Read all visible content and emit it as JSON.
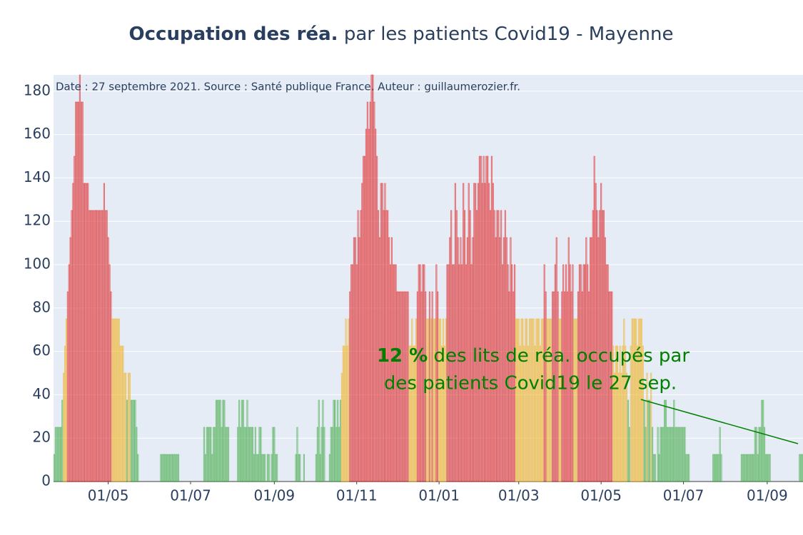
{
  "chart_data": {
    "type": "bar",
    "title_bold": "Occupation des réa.",
    "title": "par les patients Covid19 - Mayenne",
    "source": "Date : 27 septembre 2021. Source : Santé publique France. Auteur : guillaumerozier.fr.",
    "annotation": {
      "highlight": "12  %",
      "lines": [
        "des lits de réa. occupés par",
        "des patients Covid19 le 27 sep."
      ],
      "color": "#008000"
    },
    "ylim": [
      0,
      187.5
    ],
    "yticks": [
      0,
      20,
      40,
      60,
      80,
      100,
      120,
      140,
      160,
      180
    ],
    "grid": true,
    "colors": [
      "#4caf50",
      "#f0b429",
      "#e03131"
    ],
    "thresholds": [
      40,
      80
    ],
    "categories": [
      null,
      null,
      null,
      null,
      null,
      null,
      null,
      null,
      null,
      null,
      null,
      null,
      null,
      null,
      null,
      null,
      null,
      null,
      null,
      null,
      null,
      null,
      null,
      null,
      null,
      null,
      null,
      null,
      null,
      null,
      null,
      null,
      null,
      null,
      null,
      null,
      null,
      null,
      null,
      null,
      "01/05",
      null,
      null,
      null,
      null,
      null,
      null,
      null,
      null,
      null,
      null,
      null,
      null,
      null,
      null,
      null,
      null,
      null,
      null,
      null,
      null,
      null,
      null,
      null,
      null,
      null,
      null,
      null,
      null,
      null,
      null,
      null,
      null,
      null,
      null,
      null,
      null,
      null,
      null,
      null,
      null,
      null,
      null,
      null,
      null,
      null,
      null,
      null,
      null,
      null,
      null,
      null,
      null,
      null,
      null,
      null,
      null,
      null,
      null,
      null,
      null,
      "01/07",
      null,
      null,
      null,
      null,
      null,
      null,
      null,
      null,
      null,
      null,
      null,
      null,
      null,
      null,
      null,
      null,
      null,
      null,
      null,
      null,
      null,
      null,
      null,
      null,
      null,
      null,
      null,
      null,
      null,
      null,
      null,
      null,
      null,
      null,
      null,
      null,
      null,
      null,
      null,
      null,
      null,
      null,
      null,
      null,
      null,
      null,
      null,
      null,
      null,
      null,
      null,
      null,
      null,
      null,
      null,
      null,
      null,
      null,
      null,
      null,
      null,
      "01/09",
      null,
      null,
      null,
      null,
      null,
      null,
      null,
      null,
      null,
      null,
      null,
      null,
      null,
      null,
      null,
      null,
      null,
      null,
      null,
      null,
      null,
      null,
      null,
      null,
      null,
      null,
      null,
      null,
      null,
      null,
      null,
      null,
      null,
      null,
      null,
      null,
      null,
      null,
      null,
      null,
      null,
      null,
      null,
      null,
      null,
      null,
      null,
      null,
      null,
      null,
      null,
      null,
      null,
      null,
      null,
      null,
      null,
      null,
      null,
      null,
      "01/11",
      null,
      null,
      null,
      null,
      null,
      null,
      null,
      null,
      null,
      null,
      null,
      null,
      null,
      null,
      null,
      null,
      null,
      null,
      null,
      null,
      null,
      null,
      null,
      null,
      null,
      null,
      null,
      null,
      null,
      null,
      null,
      null,
      null,
      null,
      null,
      null,
      null,
      null,
      null,
      null,
      null,
      null,
      null,
      null,
      null,
      null,
      null,
      null,
      null,
      null,
      null,
      null,
      null,
      null,
      null,
      null,
      null,
      null,
      null,
      null,
      "01/01",
      null,
      null,
      null,
      null,
      null,
      null,
      null,
      null,
      null,
      null,
      null,
      null,
      null,
      null,
      null,
      null,
      null,
      null,
      null,
      null,
      null,
      null,
      null,
      null,
      null,
      null,
      null,
      null,
      null,
      null,
      null,
      null,
      null,
      null,
      null,
      null,
      null,
      null,
      null,
      null,
      null,
      null,
      null,
      null,
      null,
      null,
      null,
      null,
      null,
      null,
      null,
      null,
      null,
      null,
      null,
      null,
      null,
      null,
      "01/03",
      null,
      null,
      null,
      null,
      null,
      null,
      null,
      null,
      null,
      null,
      null,
      null,
      null,
      null,
      null,
      null,
      null,
      null,
      null,
      null,
      null,
      null,
      null,
      null,
      null,
      null,
      null,
      null,
      null,
      null,
      null,
      null,
      null,
      null,
      null,
      null,
      null,
      null,
      null,
      null,
      null,
      null,
      null,
      null,
      null,
      null,
      null,
      null,
      null,
      null,
      null,
      null,
      null,
      null,
      null,
      null,
      null,
      null,
      null,
      null,
      "01/05",
      null,
      null,
      null,
      null,
      null,
      null,
      null,
      null,
      null,
      null,
      null,
      null,
      null,
      null,
      null,
      null,
      null,
      null,
      null,
      null,
      null,
      null,
      null,
      null,
      null,
      null,
      null,
      null,
      null,
      null,
      null,
      null,
      null,
      null,
      null,
      null,
      null,
      null,
      null,
      null,
      null,
      null,
      null,
      null,
      null,
      null,
      null,
      null,
      null,
      null,
      null,
      null,
      null,
      null,
      null,
      null,
      null,
      null,
      null,
      null,
      "01/07",
      null,
      null,
      null,
      null,
      null,
      null,
      null,
      null,
      null,
      null,
      null,
      null,
      null,
      null,
      null,
      null,
      null,
      null,
      null,
      null,
      null,
      null,
      null,
      null,
      null,
      null,
      null,
      null,
      null,
      null,
      null,
      null,
      null,
      null,
      null,
      null,
      null,
      null,
      null,
      null,
      null,
      null,
      null,
      null,
      null,
      null,
      null,
      null,
      null,
      null,
      null,
      null,
      null,
      null,
      null,
      null,
      null,
      null,
      null,
      null,
      null,
      "01/09",
      null,
      null,
      null,
      null,
      null,
      null,
      null,
      null,
      null,
      null,
      null,
      null,
      null,
      null,
      null,
      null,
      null,
      null,
      null,
      null,
      null,
      null,
      null,
      null,
      null,
      null
    ],
    "values": [
      12.5,
      25,
      25,
      25,
      25,
      25,
      37.5,
      50,
      62.5,
      75,
      87.5,
      100,
      112.5,
      125,
      137.5,
      150,
      175,
      175,
      175,
      187.5,
      175,
      175,
      137.5,
      137.5,
      137.5,
      137.5,
      125,
      125,
      125,
      125,
      125,
      125,
      125,
      125,
      125,
      125,
      125,
      137.5,
      125,
      125,
      112.5,
      100,
      87.5,
      75,
      75,
      75,
      75,
      75,
      75,
      62.5,
      62.5,
      62.5,
      50,
      50,
      37.5,
      50,
      50,
      37.5,
      37.5,
      37.5,
      37.5,
      25,
      12.5,
      0,
      0,
      0,
      0,
      0,
      0,
      0,
      0,
      0,
      0,
      0,
      0,
      0,
      0,
      0,
      0,
      12.5,
      12.5,
      12.5,
      12.5,
      12.5,
      12.5,
      12.5,
      12.5,
      12.5,
      12.5,
      12.5,
      12.5,
      12.5,
      12.5,
      0,
      0,
      0,
      0,
      0,
      0,
      0,
      0,
      0,
      0,
      0,
      0,
      0,
      0,
      0,
      0,
      0,
      0,
      25,
      12.5,
      25,
      25,
      25,
      25,
      12.5,
      25,
      25,
      37.5,
      37.5,
      37.5,
      37.5,
      25,
      37.5,
      37.5,
      25,
      25,
      25,
      0,
      0,
      0,
      0,
      0,
      0,
      25,
      37.5,
      25,
      37.5,
      37.5,
      25,
      25,
      37.5,
      25,
      25,
      25,
      25,
      12.5,
      25,
      12.5,
      12.5,
      25,
      25,
      12.5,
      12.5,
      12.5,
      0,
      12.5,
      12.5,
      0,
      12.5,
      25,
      25,
      12.5,
      12.5,
      0,
      0,
      0,
      0,
      0,
      0,
      0,
      0,
      0,
      0,
      0,
      0,
      0,
      12.5,
      25,
      12.5,
      12.5,
      0,
      0,
      12.5,
      0,
      0,
      0,
      0,
      0,
      0,
      0,
      0,
      12.5,
      25,
      37.5,
      12.5,
      25,
      37.5,
      25,
      0,
      0,
      0,
      12.5,
      25,
      25,
      37.5,
      37.5,
      25,
      37.5,
      25,
      37.5,
      50,
      62.5,
      62.5,
      75,
      62.5,
      75,
      87.5,
      100,
      100,
      112.5,
      112.5,
      100,
      125,
      112.5,
      125,
      137.5,
      150,
      150,
      162.5,
      175,
      162.5,
      175,
      187.5,
      187.5,
      175,
      162.5,
      150,
      125,
      112.5,
      137.5,
      137.5,
      125,
      137.5,
      125,
      125,
      112.5,
      100,
      112.5,
      100,
      100,
      100,
      87.5,
      87.5,
      87.5,
      87.5,
      87.5,
      87.5,
      87.5,
      87.5,
      87.5,
      62.5,
      62.5,
      75,
      62.5,
      62.5,
      75,
      87.5,
      100,
      100,
      87.5,
      100,
      100,
      87.5,
      75,
      75,
      87.5,
      75,
      87.5,
      75,
      75,
      100,
      87.5,
      75,
      75,
      62.5,
      75,
      62.5,
      75,
      100,
      100,
      112.5,
      125,
      100,
      100,
      137.5,
      125,
      112.5,
      100,
      112.5,
      100,
      137.5,
      125,
      100,
      112.5,
      137.5,
      125,
      100,
      112.5,
      137.5,
      137.5,
      125,
      137.5,
      150,
      150,
      137.5,
      150,
      137.5,
      150,
      150,
      137.5,
      125,
      150,
      137.5,
      125,
      112.5,
      125,
      125,
      112.5,
      125,
      100,
      112.5,
      125,
      112.5,
      100,
      87.5,
      112.5,
      100,
      87.5,
      100,
      75,
      75,
      75,
      62.5,
      75,
      75,
      62.5,
      75,
      75,
      62.5,
      75,
      75,
      75,
      75,
      62.5,
      75,
      75,
      75,
      62.5,
      75,
      75,
      100,
      87.5,
      75,
      75,
      75,
      75,
      87.5,
      87.5,
      100,
      112.5,
      87.5,
      75,
      75,
      87.5,
      100,
      87.5,
      100,
      87.5,
      112.5,
      100,
      87.5,
      100,
      75,
      75,
      75,
      87.5,
      100,
      100,
      87.5,
      100,
      100,
      112.5,
      100,
      87.5,
      112.5,
      112.5,
      125,
      150,
      137.5,
      125,
      112.5,
      125,
      137.5,
      125,
      125,
      112.5,
      100,
      100,
      87.5,
      87.5,
      87.5,
      62.5,
      50,
      62.5,
      62.5,
      50,
      62.5,
      50,
      62.5,
      75,
      62.5,
      50,
      37.5,
      25,
      62.5,
      75,
      75,
      75,
      75,
      62.5,
      75,
      75,
      75,
      62.5,
      37.5,
      25,
      50,
      37.5,
      37.5,
      50,
      25,
      12.5,
      12.5,
      0,
      25,
      12.5,
      25,
      25,
      25,
      37.5,
      37.5,
      25,
      25,
      25,
      25,
      25,
      37.5,
      25,
      25,
      25,
      25,
      25,
      25,
      25,
      25,
      12.5,
      12.5,
      12.5,
      0,
      0,
      0,
      0,
      0,
      0,
      0,
      0,
      0,
      0,
      0,
      0,
      0,
      0,
      0,
      0,
      0,
      12.5,
      12.5,
      12.5,
      12.5,
      12.5,
      25,
      12.5,
      0,
      0,
      0,
      0,
      0,
      0,
      0,
      0,
      0,
      0,
      0,
      0,
      0,
      0,
      12.5,
      12.5,
      12.5,
      12.5,
      12.5,
      12.5,
      12.5,
      12.5,
      12.5,
      12.5,
      25,
      25,
      12.5,
      25,
      25,
      37.5,
      37.5,
      25,
      12.5,
      12.5,
      12.5,
      12.5,
      0,
      0,
      0,
      0,
      0,
      0,
      0,
      0,
      0,
      0,
      0,
      0,
      0,
      0,
      0,
      0,
      0,
      0,
      0,
      0,
      0,
      12.5,
      12.5,
      12.5
    ]
  }
}
